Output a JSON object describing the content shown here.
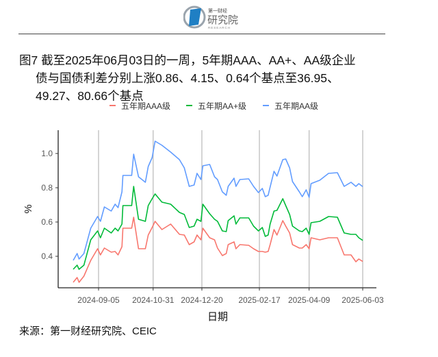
{
  "header": {
    "logo_text": {
      "top": "第一财经",
      "main": "研究院",
      "sub": "RESEARCH"
    }
  },
  "figure": {
    "title_lines": [
      "图7  截至2025年06月03日的一周，5年期AAA、AA+、AA级企业",
      "债与国债利差分别上涨0.86、4.15、0.64个基点至36.95、",
      "49.27、80.66个基点"
    ],
    "source": "来源：第一财经研究院、CEIC"
  },
  "chart_data": {
    "type": "line",
    "xlabel": "日期",
    "ylabel": "%",
    "ylim": [
      0.2,
      1.1
    ],
    "yticks": [
      "0.4",
      "0.6",
      "0.8",
      "1.0"
    ],
    "xticks": [
      "2024-09-05",
      "2024-10-31",
      "2024-12-20",
      "2025-02-17",
      "2025-04-09",
      "2025-06-03"
    ],
    "grid": "vertical lines at x ticks",
    "legend_position": "top",
    "x": [
      "2024-08-10",
      "2024-08-14",
      "2024-08-16",
      "2024-08-21",
      "2024-08-28",
      "2024-09-04",
      "2024-09-07",
      "2024-09-11",
      "2024-09-18",
      "2024-09-22",
      "2024-09-25",
      "2024-09-29",
      "2024-09-30",
      "2024-10-09",
      "2024-10-11",
      "2024-10-16",
      "2024-10-23",
      "2024-10-26",
      "2024-10-30",
      "2024-11-02",
      "2024-11-09",
      "2024-11-18",
      "2024-11-27",
      "2024-12-02",
      "2024-12-07",
      "2024-12-12",
      "2024-12-15",
      "2024-12-19",
      "2024-12-21",
      "2024-12-28",
      "2025-01-02",
      "2025-01-05",
      "2025-01-10",
      "2025-01-14",
      "2025-01-16",
      "2025-01-22",
      "2025-01-24",
      "2025-01-28",
      "2025-02-06",
      "2025-02-11",
      "2025-02-16",
      "2025-02-20",
      "2025-02-23",
      "2025-02-26",
      "2025-02-28",
      "2025-03-04",
      "2025-03-07",
      "2025-03-13",
      "2025-03-16",
      "2025-03-20",
      "2025-03-23",
      "2025-03-30",
      "2025-04-02",
      "2025-04-06",
      "2025-04-09",
      "2025-04-11",
      "2025-04-20",
      "2025-04-29",
      "2025-05-08",
      "2025-05-15",
      "2025-05-22",
      "2025-05-27",
      "2025-05-30",
      "2025-06-03"
    ],
    "series": [
      {
        "name": "五年期AAA级",
        "color": "#F8766D",
        "values": [
          0.248,
          0.276,
          0.248,
          0.284,
          0.376,
          0.444,
          0.408,
          0.448,
          0.424,
          0.428,
          0.408,
          0.456,
          0.564,
          0.564,
          0.628,
          0.444,
          0.444,
          0.524,
          0.568,
          0.604,
          0.556,
          0.588,
          0.528,
          0.524,
          0.468,
          0.484,
          0.524,
          0.496,
          0.564,
          0.508,
          0.496,
          0.448,
          0.404,
          0.416,
          0.468,
          0.484,
          0.444,
          0.468,
          0.464,
          0.444,
          0.428,
          0.428,
          0.424,
          0.428,
          0.468,
          0.556,
          0.524,
          0.608,
          0.576,
          0.536,
          0.468,
          0.448,
          0.448,
          0.468,
          0.444,
          0.508,
          0.496,
          0.508,
          0.508,
          0.408,
          0.408,
          0.368,
          0.384,
          0.3695
        ]
      },
      {
        "name": "五年期AA+级",
        "color": "#00BA38",
        "values": [
          0.324,
          0.348,
          0.324,
          0.348,
          0.496,
          0.548,
          0.508,
          0.564,
          0.536,
          0.564,
          0.548,
          0.588,
          0.696,
          0.696,
          0.808,
          0.616,
          0.604,
          0.696,
          0.736,
          0.764,
          0.716,
          0.704,
          0.656,
          0.644,
          0.568,
          0.576,
          0.616,
          0.604,
          0.704,
          0.648,
          0.616,
          0.604,
          0.548,
          0.544,
          0.608,
          0.636,
          0.588,
          0.624,
          0.624,
          0.576,
          0.548,
          0.568,
          0.516,
          0.524,
          0.588,
          0.664,
          0.668,
          0.736,
          0.696,
          0.644,
          0.576,
          0.548,
          0.544,
          0.564,
          0.528,
          0.596,
          0.604,
          0.632,
          0.628,
          0.536,
          0.528,
          0.528,
          0.508,
          0.4927
        ]
      },
      {
        "name": "五年期AA级",
        "color": "#619CFF",
        "values": [
          0.376,
          0.416,
          0.384,
          0.416,
          0.564,
          0.632,
          0.604,
          0.688,
          0.664,
          0.704,
          0.684,
          0.776,
          0.872,
          0.872,
          0.996,
          0.864,
          0.832,
          0.924,
          0.976,
          1.072,
          1.048,
          1.008,
          0.964,
          0.916,
          0.808,
          0.816,
          0.884,
          0.848,
          0.928,
          0.936,
          0.864,
          0.848,
          0.776,
          0.756,
          0.808,
          0.856,
          0.808,
          0.848,
          0.852,
          0.808,
          0.772,
          0.796,
          0.748,
          0.756,
          0.804,
          0.896,
          0.868,
          0.964,
          0.968,
          0.916,
          0.836,
          0.776,
          0.748,
          0.788,
          0.744,
          0.824,
          0.844,
          0.884,
          0.888,
          0.808,
          0.832,
          0.808,
          0.824,
          0.8066
        ]
      }
    ]
  }
}
